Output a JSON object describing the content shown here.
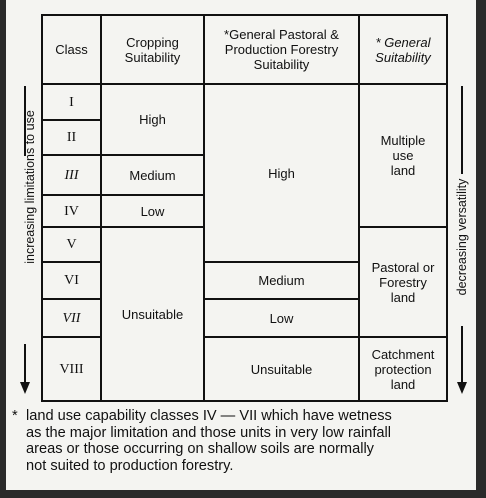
{
  "table": {
    "headers": {
      "class": "Class",
      "cropping": "Cropping\nSuitability",
      "pastoral": "*General Pastoral &\nProduction Forestry\nSuitability",
      "general": "* General\nSuitability"
    },
    "classes": [
      "I",
      "II",
      "III",
      "IV",
      "V",
      "VI",
      "VII",
      "VIII"
    ],
    "cropping": {
      "high": "High",
      "medium": "Medium",
      "low": "Low",
      "unsuitable": "Unsuitable"
    },
    "pastoral": {
      "high": "High",
      "medium": "Medium",
      "low": "Low",
      "unsuitable": "Unsuitable"
    },
    "general": {
      "multiple": "Multiple\nuse\nland",
      "pastoral_forestry": "Pastoral or\nForestry\nland",
      "catchment": "Catchment\nprotection\nland"
    }
  },
  "side_labels": {
    "left": "increasing limitations to use",
    "right": "decreasing versatility"
  },
  "footnote": {
    "marker": "*",
    "text": "land use capability classes IV — VII which have wetness\nas the major limitation and those units in very low rainfall\nareas or those occurring on shallow soils are normally\nnot suited to production forestry."
  }
}
